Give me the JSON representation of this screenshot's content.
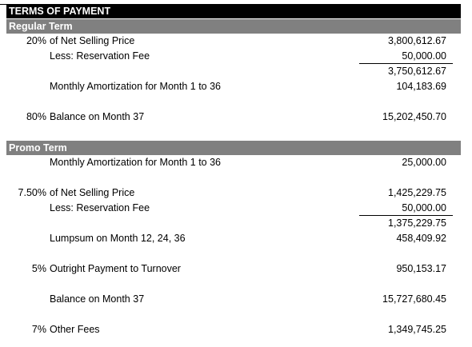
{
  "title": "TERMS OF PAYMENT",
  "regular": {
    "header": "Regular Term",
    "pct_net": "20%",
    "net_label": "of Net Selling Price",
    "net_value": "3,800,612.67",
    "res_label": "Less: Reservation Fee",
    "res_value": "50,000.00",
    "subtotal": "3,750,612.67",
    "amort_label": "Monthly Amortization for Month 1 to 36",
    "amort_value": "104,183.69",
    "bal_pct": "80%",
    "bal_label": "Balance on Month 37",
    "bal_value": "15,202,450.70"
  },
  "promo": {
    "header": "Promo Term",
    "amort_label": "Monthly Amortization for Month 1 to 36",
    "amort_value": "25,000.00",
    "pct_net": "7.50%",
    "net_label": "of Net Selling Price",
    "net_value": "1,425,229.75",
    "res_label": "Less: Reservation Fee",
    "res_value": "50,000.00",
    "subtotal": "1,375,229.75",
    "lump_label": "Lumpsum on Month 12, 24, 36",
    "lump_value": "458,409.92",
    "outright_pct": "5%",
    "outright_label": "Outright Payment to Turnover",
    "outright_value": "950,153.17",
    "bal_label": "Balance on Month 37",
    "bal_value": "15,727,680.45",
    "fees_pct": "7%",
    "fees_label": "Other Fees",
    "fees_value": "1,349,745.25"
  }
}
